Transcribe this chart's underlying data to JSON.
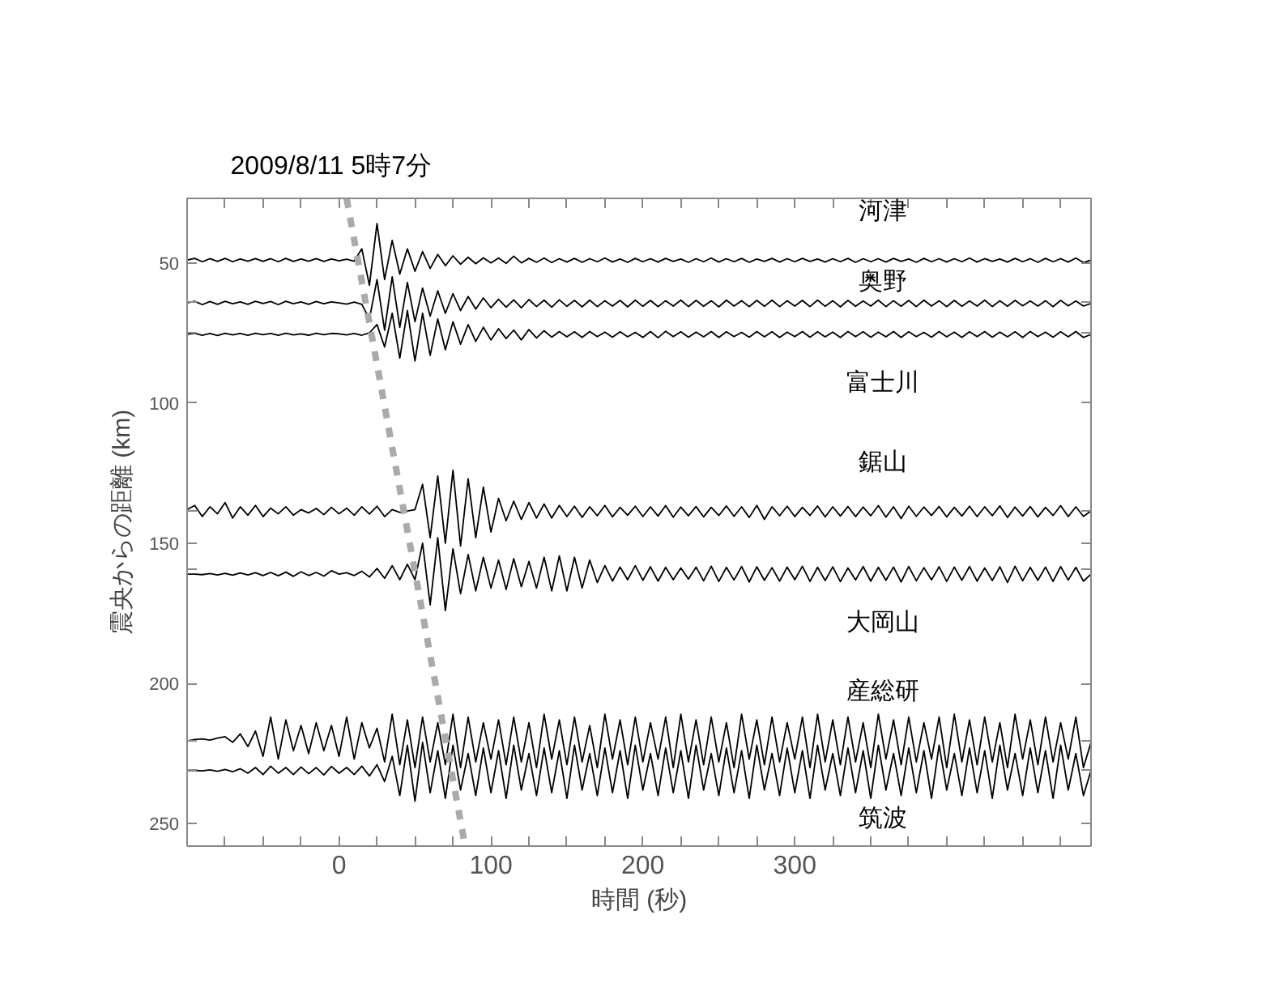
{
  "chart_data": {
    "type": "line",
    "xlabel": "時間 (秒)",
    "ylabel": "震央からの距離 (km)",
    "annotations": [
      {
        "text": "2009/8/11 5時7分",
        "x": 0
      }
    ],
    "xlim": [
      -100,
      495
    ],
    "ylim": [
      258,
      27
    ],
    "xticks": [
      {
        "value": -100,
        "label": null
      },
      {
        "value": -75,
        "label": null
      },
      {
        "value": -50,
        "label": null
      },
      {
        "value": -25,
        "label": null
      },
      0,
      {
        "value": 25,
        "label": null
      },
      {
        "value": 50,
        "label": null
      },
      {
        "value": 75,
        "label": null
      },
      100,
      {
        "value": 125,
        "label": null
      },
      {
        "value": 150,
        "label": null
      },
      {
        "value": 175,
        "label": null
      },
      200,
      {
        "value": 225,
        "label": null
      },
      {
        "value": 250,
        "label": null
      },
      {
        "value": 275,
        "label": null
      },
      300,
      {
        "value": 325,
        "label": null
      },
      {
        "value": 350,
        "label": null
      },
      {
        "value": 375,
        "label": null
      },
      {
        "value": 400,
        "label": null
      },
      {
        "value": 425,
        "label": null
      },
      {
        "value": 450,
        "label": null
      },
      {
        "value": 475,
        "label": null
      }
    ],
    "yticks": [
      50,
      {
        "value": 64,
        "label": null
      },
      {
        "value": 75,
        "label": null
      },
      100,
      {
        "value": 138.5,
        "label": null
      },
      150,
      {
        "value": 159,
        "label": null
      },
      200,
      {
        "value": 220.5,
        "label": null
      },
      {
        "value": 231,
        "label": null
      },
      250
    ],
    "grid": false,
    "line_style": "solid",
    "x": [
      -100,
      -95,
      -90,
      -85,
      -80,
      -75,
      -70,
      -65,
      -60,
      -55,
      -50,
      -45,
      -40,
      -35,
      -30,
      -25,
      -20,
      -15,
      -10,
      -5,
      0,
      5,
      10,
      15,
      20,
      25,
      30,
      35,
      40,
      45,
      50,
      55,
      60,
      65,
      70,
      75,
      80,
      85,
      90,
      95,
      100,
      105,
      110,
      115,
      120,
      125,
      130,
      135,
      140,
      145,
      150,
      155,
      160,
      165,
      170,
      175,
      180,
      185,
      190,
      195,
      200,
      205,
      210,
      215,
      220,
      225,
      230,
      235,
      240,
      245,
      250,
      255,
      260,
      265,
      270,
      275,
      280,
      285,
      290,
      295,
      300,
      305,
      310,
      315,
      320,
      325,
      330,
      335,
      340,
      345,
      350,
      355,
      360,
      365,
      370,
      375,
      380,
      385,
      390,
      395,
      400,
      405,
      410,
      415,
      420,
      425,
      430,
      435,
      440,
      445,
      450,
      455,
      460,
      465,
      470,
      475,
      480,
      485,
      490,
      495
    ],
    "series": [
      {
        "name": "河津",
        "color": "#000000",
        "values": [
          49,
          48.4,
          49.6,
          48.5,
          49.5,
          48.4,
          49.6,
          48.6,
          49.4,
          48.5,
          49.5,
          48.5,
          49.6,
          48.4,
          49.5,
          48.6,
          49.4,
          48.5,
          49.5,
          48.6,
          49.3,
          48.7,
          49.4,
          45,
          58,
          36,
          56,
          42,
          54,
          45,
          53,
          46,
          52,
          47,
          51,
          47.5,
          50.5,
          48,
          50.3,
          48.2,
          50,
          48.3,
          50.2,
          47.6,
          50,
          48.4,
          49.8,
          48.3,
          49.9,
          48.5,
          49.7,
          48.4,
          49.8,
          48.5,
          49.6,
          48.3,
          49.7,
          48.6,
          49.8,
          48.4,
          49.6,
          48.5,
          49.7,
          48.4,
          49.5,
          48.6,
          49.8,
          48.5,
          49.6,
          48.3,
          49.7,
          48.5,
          49.6,
          48.4,
          49.8,
          48.6,
          49.5,
          48.4,
          49.7,
          48.5,
          49.6,
          48.4,
          49.5,
          48.6,
          49.7,
          48.5,
          49.6,
          48.4,
          49.8,
          48.5,
          49.6,
          48.5,
          49.7,
          48.4,
          49.5,
          48.6,
          49.8,
          48.4,
          49.6,
          48.5,
          49.7,
          48.5,
          49.6,
          48.3,
          49.7,
          48.5,
          49.5,
          48.6,
          49.7,
          48.4,
          49.6,
          48.5,
          49.8,
          48.4,
          49.6,
          48.5,
          49.7,
          48.3,
          49.9,
          49
        ]
      },
      {
        "name": "奥野",
        "color": "#000000",
        "values": [
          64.3,
          63.7,
          64.9,
          63.8,
          64.8,
          63.7,
          64.6,
          63.9,
          64.8,
          63.7,
          64.5,
          63.8,
          64.9,
          63.7,
          64.6,
          63.9,
          64.8,
          63.8,
          64.6,
          63.9,
          64.3,
          64.7,
          64,
          64.8,
          70,
          56,
          74,
          55,
          73,
          57,
          71,
          59,
          69,
          60,
          68,
          61,
          67,
          62,
          66.5,
          62.5,
          66,
          63,
          65.8,
          63.2,
          66,
          63.1,
          65.6,
          63.3,
          65.8,
          63.2,
          65.5,
          63.4,
          65.7,
          63.3,
          65.6,
          63.5,
          65.4,
          63.4,
          65.7,
          63.3,
          65.5,
          63.4,
          65.6,
          63.5,
          65.4,
          63.3,
          65.6,
          63.4,
          65.5,
          63.5,
          65.7,
          63.3,
          65.4,
          63.5,
          65.6,
          63.4,
          65.5,
          63.3,
          65.6,
          63.5,
          65.4,
          63.4,
          65.6,
          63.3,
          65.5,
          63.5,
          65.7,
          63.4,
          65.5,
          63.6,
          65.4,
          63.3,
          65.6,
          63.5,
          65.5,
          63.4,
          65.6,
          63.3,
          65.4,
          63.5,
          65.6,
          63.4,
          65.5,
          63.6,
          65.4,
          63.3,
          65.6,
          63.5,
          65.5,
          63.4,
          65.3,
          63.6,
          65.4,
          63.5,
          65.6,
          63.4,
          65.3,
          63.6,
          65.4,
          64.5
        ]
      },
      {
        "name": "富士川",
        "color": "#000000",
        "values": [
          75.5,
          75.1,
          75.8,
          75.2,
          75.9,
          75.1,
          75.7,
          75.2,
          75.8,
          75.1,
          75.6,
          75.2,
          75.8,
          75.1,
          75.7,
          75.3,
          75.8,
          75.1,
          75.6,
          75.2,
          75.3,
          75.7,
          75.2,
          75.8,
          75,
          72,
          80,
          68,
          84,
          67,
          85,
          68,
          83,
          70,
          81,
          71,
          79,
          72,
          78,
          73,
          77.5,
          73.5,
          77,
          74,
          77.5,
          73.8,
          76.8,
          74.2,
          76.5,
          74.5,
          76.4,
          74.6,
          76.6,
          74.5,
          76.3,
          74.7,
          76.5,
          74.6,
          76.4,
          74.8,
          76.6,
          74.5,
          76.7,
          74.4,
          76.3,
          74.6,
          76.5,
          74.7,
          76.4,
          74.5,
          76.6,
          74.6,
          76.3,
          74.8,
          76.5,
          74.5,
          76.4,
          74.6,
          76.6,
          74.7,
          76.3,
          74.5,
          76.5,
          74.6,
          76.4,
          74.7,
          76.6,
          74.5,
          76.3,
          74.6,
          76.5,
          74.7,
          76.4,
          74.5,
          76.6,
          74.6,
          76.3,
          74.8,
          76.5,
          74.5,
          76.4,
          74.7,
          76.6,
          74.6,
          76.3,
          74.5,
          76.5,
          74.7,
          76.4,
          74.6,
          76.6,
          74.5,
          76.3,
          74.7,
          76.5,
          74.6,
          76.4,
          74.5,
          76.6,
          75.5
        ]
      },
      {
        "name": "鋸山",
        "color": "#000000",
        "values": [
          138,
          136.5,
          140.5,
          137,
          139.5,
          135.5,
          141,
          137,
          140,
          136.5,
          140.5,
          137.5,
          139.5,
          137,
          140,
          138,
          139.2,
          137.6,
          139.8,
          137.2,
          139.5,
          137.5,
          140,
          137,
          139.6,
          136.8,
          140.5,
          138,
          139,
          138.5,
          138,
          129,
          148,
          126,
          150,
          124,
          151,
          127,
          148,
          130,
          146,
          134,
          142,
          135,
          141.5,
          135.5,
          141,
          136,
          141,
          136.5,
          140.5,
          136.8,
          140.8,
          137,
          140.2,
          136.5,
          140.6,
          137.2,
          140,
          136.8,
          140.5,
          137,
          140.3,
          136.6,
          140.7,
          137.1,
          140.2,
          136.9,
          140.6,
          137.2,
          140.1,
          136.7,
          140.4,
          137,
          140.8,
          136.5,
          141.5,
          137,
          140.2,
          136.8,
          140.5,
          137.2,
          140.1,
          136.7,
          140.6,
          137,
          140.3,
          136.9,
          140.5,
          137.1,
          140.2,
          136.6,
          140.7,
          137,
          141.2,
          136.8,
          140.4,
          137.1,
          140.1,
          136.9,
          140.6,
          137.2,
          140.3,
          136.8,
          140.5,
          137,
          140.2,
          136.7,
          140.8,
          137.1,
          140.3,
          136.9,
          140.6,
          137.2,
          140.1,
          136.6,
          140.5,
          137,
          140.4,
          138.5
        ]
      },
      {
        "name": "大岡山",
        "color": "#000000",
        "values": [
          161,
          161,
          161.2,
          160.8,
          161.3,
          160.7,
          161.4,
          160.6,
          161.3,
          160.5,
          161.5,
          160.4,
          161.6,
          160.3,
          161.8,
          160.2,
          161.5,
          160.4,
          161.7,
          159.8,
          161,
          160.5,
          161.5,
          160,
          162,
          159,
          162.5,
          158,
          163,
          157.5,
          163,
          150,
          172,
          148,
          174,
          152,
          168,
          154,
          167,
          155,
          166,
          156,
          166.5,
          155.5,
          165.5,
          156.5,
          166,
          155,
          167,
          154.5,
          167,
          155,
          166,
          156,
          164,
          158,
          163.5,
          158.5,
          163,
          158,
          163.2,
          158.4,
          163.5,
          158.6,
          163,
          158.8,
          162.8,
          158.5,
          163.4,
          158.2,
          163.6,
          158.6,
          163.1,
          158.3,
          163.8,
          158.4,
          163.2,
          158.7,
          163.5,
          158.5,
          163,
          158.2,
          163.6,
          158.6,
          163.3,
          158.4,
          163.7,
          158.8,
          163.1,
          158.3,
          163.5,
          158.6,
          163.2,
          158.5,
          163.8,
          158.3,
          163.4,
          158.7,
          163.1,
          158.4,
          163.6,
          158.5,
          163.2,
          158.3,
          163.5,
          158.8,
          163.3,
          158.4,
          164,
          158.2,
          163.4,
          158.6,
          163.2,
          158.5,
          163.6,
          158.3,
          163.1,
          158.6,
          163.5,
          161
        ]
      },
      {
        "name": "産総研",
        "color": "#000000",
        "values": [
          220.5,
          220,
          219.8,
          220.2,
          219.5,
          219,
          221,
          218,
          222.5,
          217,
          226,
          212,
          227,
          213,
          224,
          215,
          225,
          214,
          224,
          215,
          226,
          212,
          227,
          214,
          223,
          216,
          228,
          211,
          229,
          213,
          230,
          212,
          228,
          214,
          229,
          211,
          230,
          212,
          228,
          214,
          227,
          213,
          229,
          212,
          228,
          214,
          230,
          211,
          227,
          213,
          229,
          212,
          228,
          215,
          230,
          211,
          227,
          213,
          229,
          212,
          228,
          214,
          227,
          212,
          230,
          211,
          228,
          213,
          229,
          212,
          228,
          214,
          230,
          211,
          227,
          213,
          229,
          212,
          228,
          214,
          227,
          212,
          230,
          211,
          228,
          213,
          229,
          212,
          228,
          214,
          230,
          211,
          227,
          213,
          229,
          212,
          228,
          214,
          227,
          212,
          230,
          211,
          228,
          213,
          229,
          212,
          228,
          214,
          230,
          211,
          227,
          213,
          229,
          212,
          228,
          214,
          227,
          212,
          230,
          221
        ]
      },
      {
        "name": "筑波",
        "color": "#000000",
        "values": [
          231,
          231,
          231.2,
          230.8,
          231.3,
          230.7,
          231.5,
          230.4,
          232,
          230,
          232.5,
          229.5,
          232,
          230,
          232.5,
          229.8,
          232.2,
          230,
          232.6,
          229.6,
          232,
          230,
          232.5,
          229.5,
          233,
          229,
          235,
          226,
          240,
          222,
          242,
          221,
          239,
          224,
          241,
          222,
          238,
          225,
          240,
          223,
          239,
          224,
          241,
          222,
          238,
          225,
          240,
          223,
          239,
          224,
          241,
          222,
          238,
          225,
          240,
          223,
          239,
          224,
          241,
          222,
          238,
          225,
          240,
          223,
          239,
          224,
          241,
          222,
          238,
          225,
          240,
          223,
          239,
          224,
          241,
          222,
          238,
          225,
          240,
          223,
          239,
          224,
          241,
          222,
          238,
          225,
          240,
          223,
          239,
          224,
          241,
          222,
          238,
          225,
          240,
          223,
          239,
          224,
          241,
          222,
          238,
          225,
          240,
          223,
          239,
          224,
          241,
          222,
          238,
          225,
          240,
          223,
          239,
          224,
          241,
          222,
          238,
          225,
          240,
          231
        ]
      },
      {
        "color": "#aaaaaa",
        "line_style": "dashed",
        "x": [
          5,
          83
        ],
        "values": [
          27,
          258
        ]
      }
    ]
  }
}
